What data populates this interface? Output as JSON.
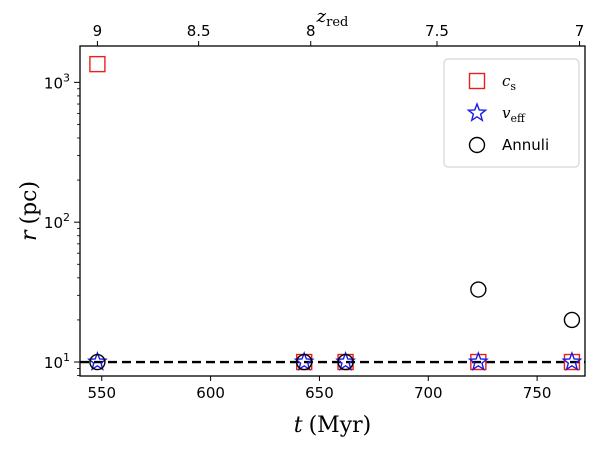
{
  "chart_data": {
    "type": "scatter",
    "xlabel": "t",
    "xlabel_unit": "(Myr)",
    "ylabel": "r",
    "ylabel_unit": "(pc)",
    "top_axis_label": "z",
    "top_axis_label_sub": "red",
    "x_range": [
      540,
      772
    ],
    "y_range_log10": [
      0.9,
      3.26
    ],
    "y_scale": "log",
    "x_ticks": [
      {
        "value": 550,
        "label": "550"
      },
      {
        "value": 600,
        "label": "600"
      },
      {
        "value": 650,
        "label": "650"
      },
      {
        "value": 700,
        "label": "700"
      },
      {
        "value": 750,
        "label": "750"
      }
    ],
    "y_ticks": [
      {
        "value": 10,
        "base": "10",
        "exp": "1"
      },
      {
        "value": 100,
        "base": "10",
        "exp": "2"
      },
      {
        "value": 1000,
        "base": "10",
        "exp": "3"
      }
    ],
    "top_ticks": [
      {
        "t": 548,
        "label": "9"
      },
      {
        "t": 594.5,
        "label": "8.5"
      },
      {
        "t": 646,
        "label": "8"
      },
      {
        "t": 704,
        "label": "7.5"
      },
      {
        "t": 769.5,
        "label": "7"
      }
    ],
    "reference_line": {
      "y": 10,
      "style": "dashed"
    },
    "legend_position": "top-right",
    "series": [
      {
        "name": "c",
        "name_sub": "s",
        "marker": "square",
        "color": "#e8201a",
        "points": [
          {
            "x": 548,
            "y": 1350
          },
          {
            "x": 643,
            "y": 10
          },
          {
            "x": 662,
            "y": 10
          },
          {
            "x": 723,
            "y": 10
          },
          {
            "x": 766,
            "y": 10
          }
        ]
      },
      {
        "name": "v",
        "name_sub": "eff",
        "marker": "star",
        "color": "#1a1ae8",
        "points": [
          {
            "x": 548,
            "y": 10
          },
          {
            "x": 643,
            "y": 10
          },
          {
            "x": 662,
            "y": 10
          },
          {
            "x": 723,
            "y": 10
          },
          {
            "x": 766,
            "y": 10
          }
        ]
      },
      {
        "name": "Annuli",
        "marker": "circle",
        "color": "#000000",
        "points": [
          {
            "x": 548,
            "y": 10
          },
          {
            "x": 643,
            "y": 10
          },
          {
            "x": 662,
            "y": 10
          },
          {
            "x": 723,
            "y": 33
          },
          {
            "x": 766,
            "y": 20
          }
        ]
      }
    ]
  }
}
